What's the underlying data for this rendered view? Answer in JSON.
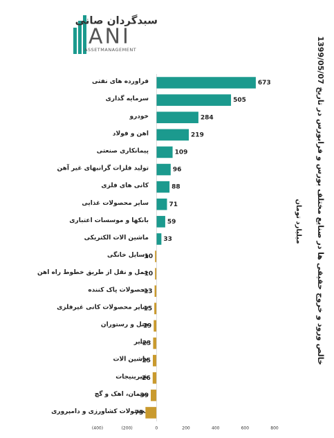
{
  "logo": {
    "name": "سبدگردان صانی",
    "mark": "ANI",
    "tagline": "ASSETMANAGEMENT"
  },
  "chart_data": {
    "type": "bar",
    "orientation": "horizontal",
    "title": "خالص ورود و خروج حقیقی ها در صنایع مختلف بورس و فرابورس در تاریخ 1399/05/07",
    "subtitle": "میلیارد تومان",
    "categories": [
      "فراورده های نفتی",
      "سرمایه گذاری",
      "خودرو",
      "اهن و فولاد",
      "پیمانکاری صنعتی",
      "تولید فلزات گرانبهای غیر آهن",
      "کانی های فلزی",
      "سایر محصولات غذایی",
      "بانکها و موسسات اعتباری",
      "ماشین الات الکتریکی",
      "وسایل خانگی",
      "حمل و نقل از طریق خطوط راه اهن",
      "محصولات پاک کننده",
      "سایر محصولات کانی غیرفلزی",
      "هتل و رستوران",
      "سایر",
      "ماشین الات",
      "شیرینیجات",
      "سیمان، اهک و گچ",
      "محصولات کشاورزی و دامپروری"
    ],
    "values": [
      673,
      505,
      284,
      219,
      109,
      96,
      88,
      71,
      59,
      33,
      -10,
      -10,
      -13,
      -15,
      -19,
      -23,
      -25,
      -26,
      -39,
      -75
    ],
    "color": "#1b9a8e",
    "negative_color": "#c99a2e",
    "negative_tick_color": "#d01010",
    "xlim": [
      -400,
      800
    ],
    "xticks": [
      {
        "value": -400,
        "label": "(400)"
      },
      {
        "value": -200,
        "label": "(200)"
      },
      0,
      200,
      400,
      600,
      800
    ]
  }
}
